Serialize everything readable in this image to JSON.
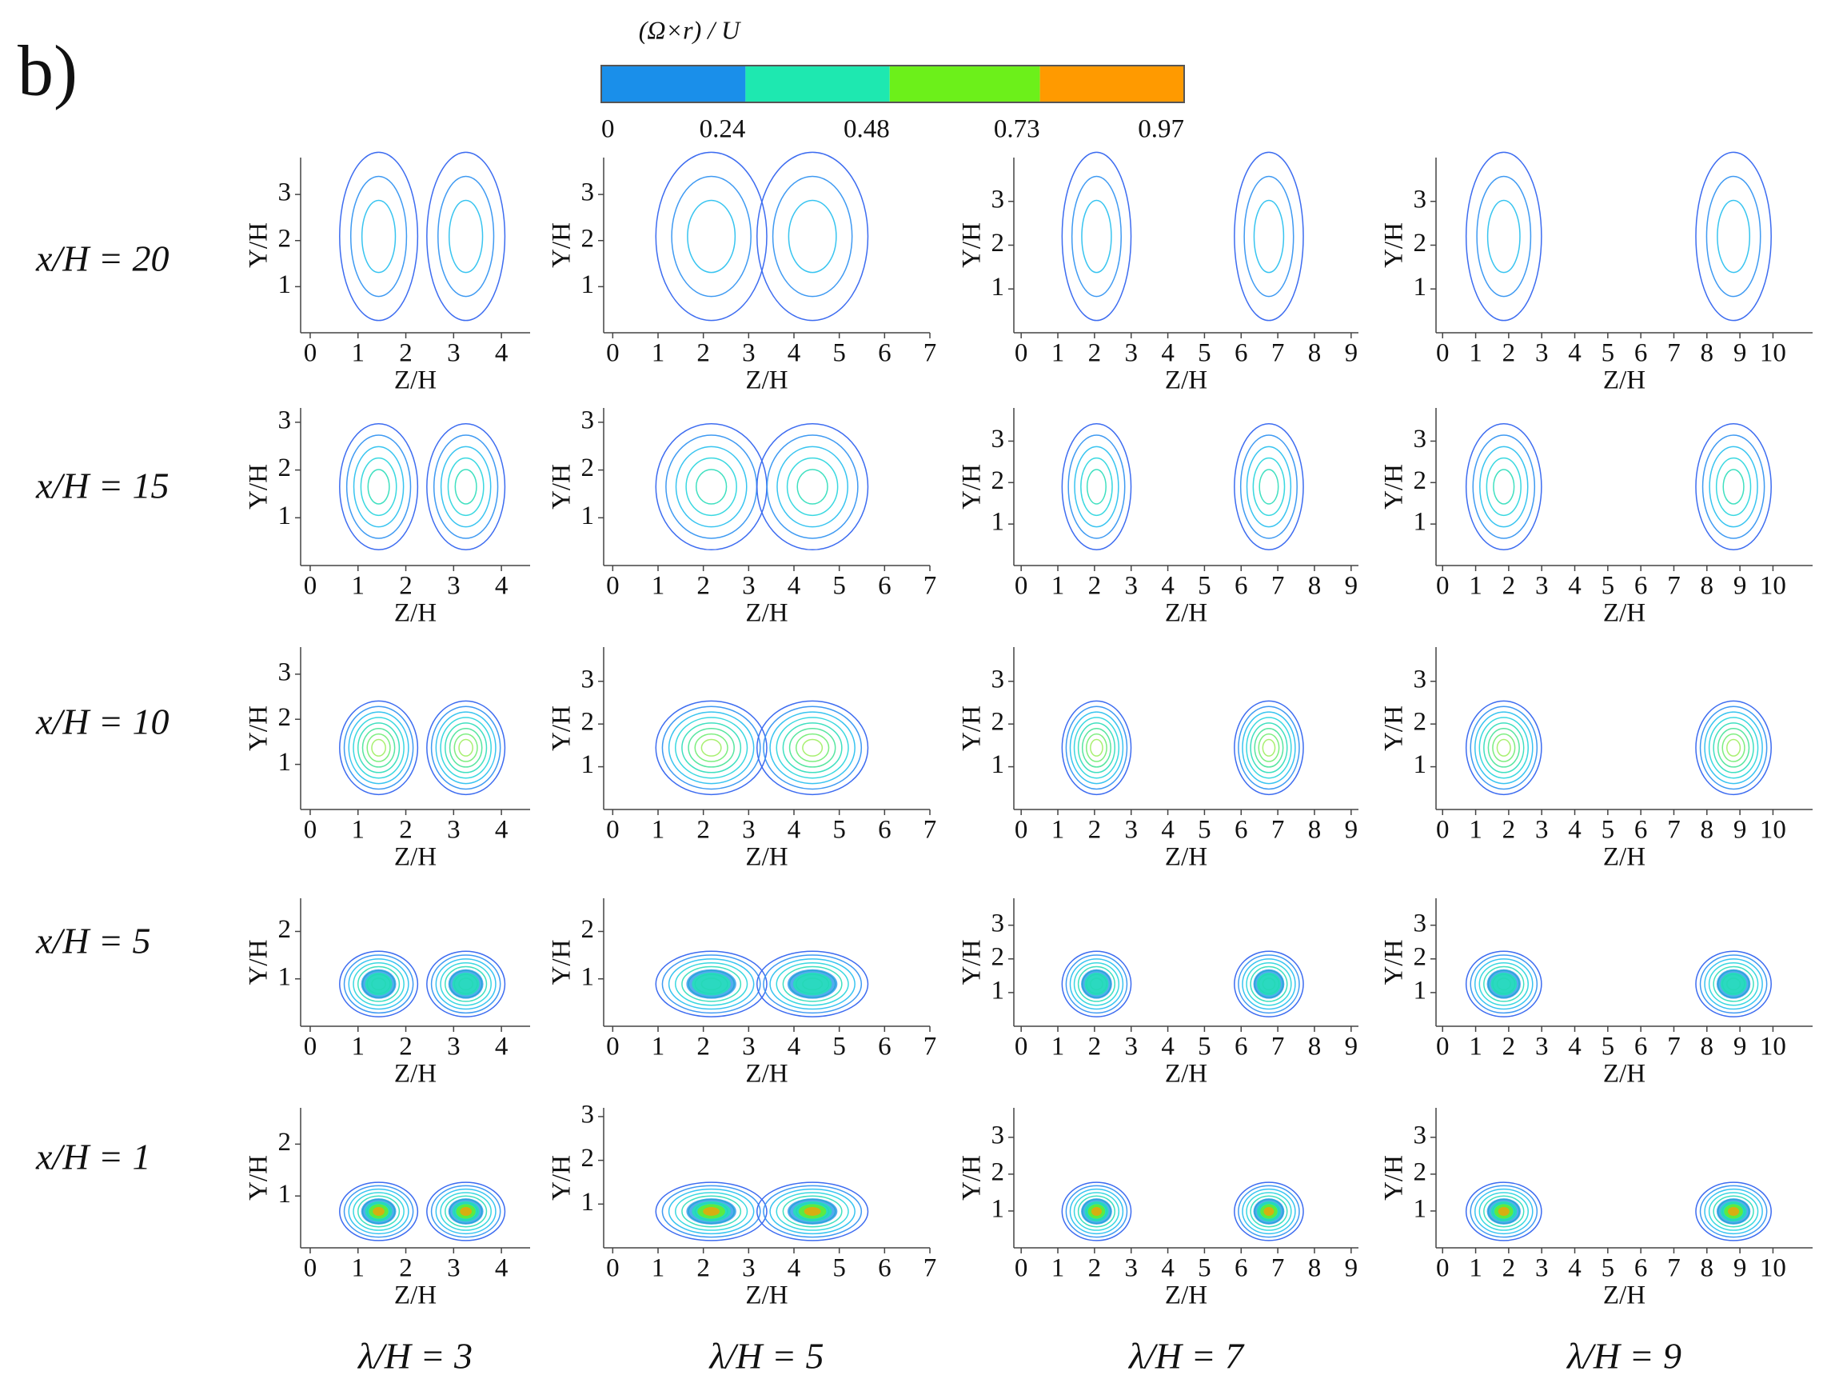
{
  "panel_label": "b)",
  "colorbar": {
    "title": "(Ω×r) / U",
    "clim": [
      0,
      0.97
    ],
    "ticks": [
      0,
      0.24,
      0.48,
      0.73,
      0.97
    ],
    "colors": [
      "#1a8fea",
      "#1ee8b0",
      "#6cf01a",
      "#ff9a00"
    ]
  },
  "xlabel": "Z/H",
  "ylabel": "Y/H",
  "rows": [
    "x/H = 20",
    "x/H = 15",
    "x/H = 10",
    "x/H = 5",
    "x/H = 1"
  ],
  "columns": [
    {
      "label": "λ/H = 3",
      "xlim": [
        -0.2,
        4.6
      ],
      "xticks": [
        0,
        1,
        2,
        3,
        4
      ]
    },
    {
      "label": "λ/H = 5",
      "xlim": [
        -0.2,
        7
      ],
      "xticks": [
        0,
        1,
        2,
        3,
        4,
        5,
        6,
        7
      ]
    },
    {
      "label": "λ/H = 7",
      "xlim": [
        -0.2,
        9.2
      ],
      "xticks": [
        0,
        1,
        2,
        3,
        4,
        5,
        6,
        7,
        8,
        9
      ]
    },
    {
      "label": "λ/H = 9",
      "xlim": [
        -0.2,
        11.2
      ],
      "xticks": [
        0,
        1,
        2,
        3,
        4,
        5,
        6,
        7,
        8,
        9,
        10
      ]
    }
  ],
  "panels": [
    [
      {
        "ylim": [
          0,
          3.8
        ],
        "yticks": [
          1,
          2,
          3
        ]
      },
      {
        "ylim": [
          0,
          3.8
        ],
        "yticks": [
          1,
          2,
          3
        ]
      },
      {
        "ylim": [
          0,
          4
        ],
        "yticks": [
          1,
          2,
          3
        ]
      },
      {
        "ylim": [
          0,
          4
        ],
        "yticks": [
          1,
          2,
          3
        ]
      }
    ],
    [
      {
        "ylim": [
          0,
          3.3
        ],
        "yticks": [
          1,
          2,
          3
        ]
      },
      {
        "ylim": [
          0,
          3.3
        ],
        "yticks": [
          1,
          2,
          3
        ]
      },
      {
        "ylim": [
          0,
          3.8
        ],
        "yticks": [
          1,
          2,
          3
        ]
      },
      {
        "ylim": [
          0,
          3.8
        ],
        "yticks": [
          1,
          2,
          3
        ]
      }
    ],
    [
      {
        "ylim": [
          0,
          3.6
        ],
        "yticks": [
          1,
          2,
          3
        ]
      },
      {
        "ylim": [
          0,
          3.8
        ],
        "yticks": [
          1,
          2,
          3
        ]
      },
      {
        "ylim": [
          0,
          3.8
        ],
        "yticks": [
          1,
          2,
          3
        ]
      },
      {
        "ylim": [
          0,
          3.8
        ],
        "yticks": [
          1,
          2,
          3
        ]
      }
    ],
    [
      {
        "ylim": [
          0,
          2.7
        ],
        "yticks": [
          1,
          2
        ]
      },
      {
        "ylim": [
          0,
          2.7
        ],
        "yticks": [
          1,
          2
        ]
      },
      {
        "ylim": [
          0,
          3.8
        ],
        "yticks": [
          1,
          2,
          3
        ]
      },
      {
        "ylim": [
          0,
          3.8
        ],
        "yticks": [
          1,
          2,
          3
        ]
      }
    ],
    [
      {
        "ylim": [
          0,
          2.7
        ],
        "yticks": [
          1,
          2
        ]
      },
      {
        "ylim": [
          0,
          3.2
        ],
        "yticks": [
          1,
          2,
          3
        ]
      },
      {
        "ylim": [
          0,
          3.8
        ],
        "yticks": [
          1,
          2,
          3
        ]
      },
      {
        "ylim": [
          0,
          3.8
        ],
        "yticks": [
          1,
          2,
          3
        ]
      }
    ]
  ]
}
